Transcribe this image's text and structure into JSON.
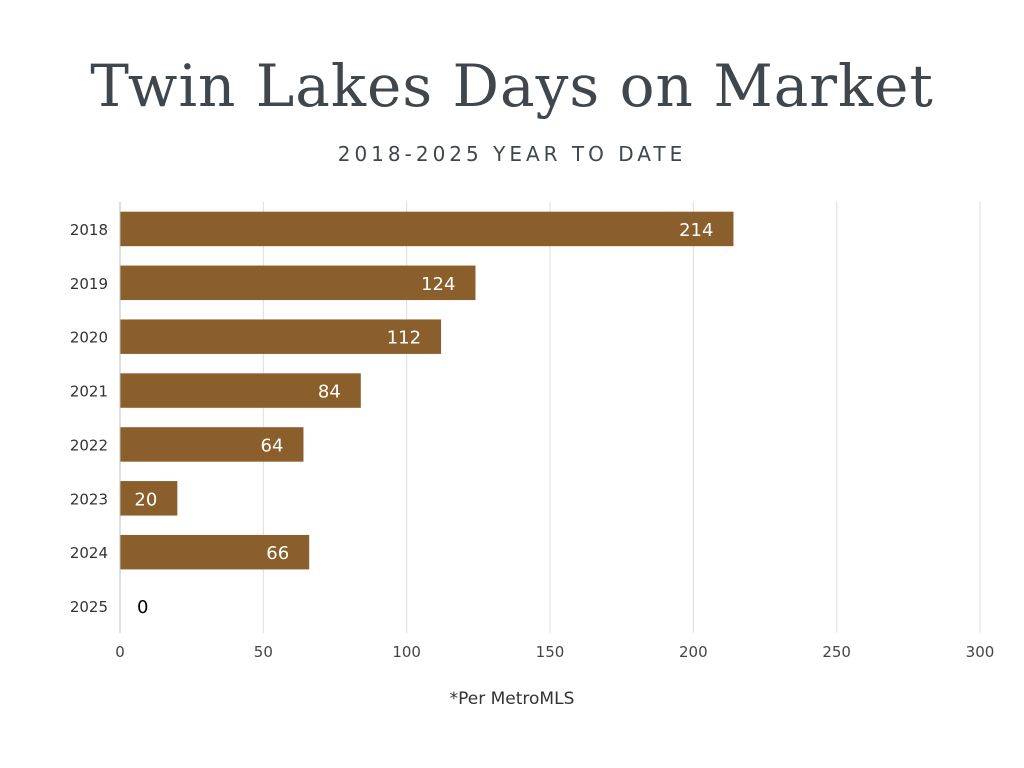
{
  "title": "Twin Lakes Days on Market",
  "subtitle": "2018-2025 YEAR TO DATE",
  "footnote": "*Per MetroMLS",
  "chart_data": {
    "type": "bar",
    "orientation": "horizontal",
    "categories": [
      "2018",
      "2019",
      "2020",
      "2021",
      "2022",
      "2023",
      "2024",
      "2025"
    ],
    "values": [
      214,
      124,
      112,
      84,
      64,
      20,
      66,
      0
    ],
    "xlim": [
      0,
      300
    ],
    "xticks": [
      0,
      50,
      100,
      150,
      200,
      250,
      300
    ],
    "grid": "vertical",
    "bar_color": "#8a5f2c",
    "label_color_inside": "#ffffff",
    "label_color_outside": "#000000"
  }
}
